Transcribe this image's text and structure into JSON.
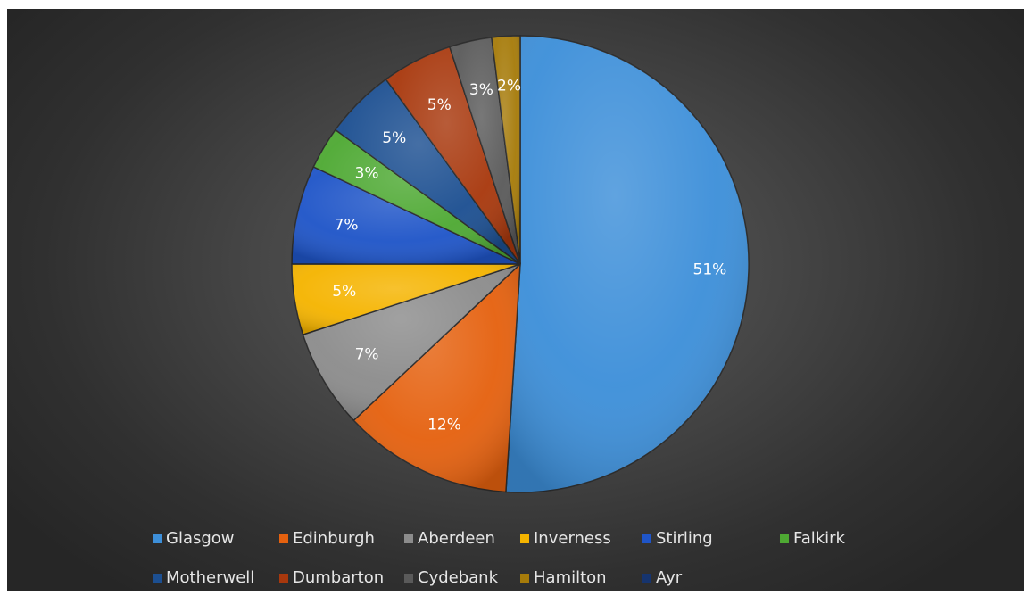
{
  "chart_data": {
    "type": "pie",
    "categories": [
      "Glasgow",
      "Edinburgh",
      "Aberdeen",
      "Inverness",
      "Stirling",
      "Falkirk",
      "Motherwell",
      "Dumbarton",
      "Cydebank",
      "Hamilton",
      "Ayr"
    ],
    "values": [
      51,
      12,
      7,
      5,
      7,
      3,
      5,
      5,
      3,
      2,
      0
    ],
    "data_labels": [
      "51%",
      "12%",
      "7%",
      "5%",
      "7%",
      "3%",
      "5%",
      "5%",
      "3%",
      "2%",
      ""
    ],
    "colors": [
      "#3d8fd9",
      "#e5610f",
      "#8c8c8c",
      "#f5b400",
      "#1f55c8",
      "#4ea933",
      "#1c4f91",
      "#a8380d",
      "#5a5a5a",
      "#a67b0a",
      "#16346e"
    ],
    "legend_placement": "bottom",
    "start_angle_deg": 0,
    "direction": "clockwise"
  },
  "legend": [
    {
      "label": "Glasgow"
    },
    {
      "label": "Edinburgh"
    },
    {
      "label": "Aberdeen"
    },
    {
      "label": "Inverness"
    },
    {
      "label": "Stirling"
    },
    {
      "label": "Falkirk"
    },
    {
      "label": "Motherwell"
    },
    {
      "label": "Dumbarton"
    },
    {
      "label": "Cydebank"
    },
    {
      "label": "Hamilton"
    },
    {
      "label": "Ayr"
    }
  ]
}
